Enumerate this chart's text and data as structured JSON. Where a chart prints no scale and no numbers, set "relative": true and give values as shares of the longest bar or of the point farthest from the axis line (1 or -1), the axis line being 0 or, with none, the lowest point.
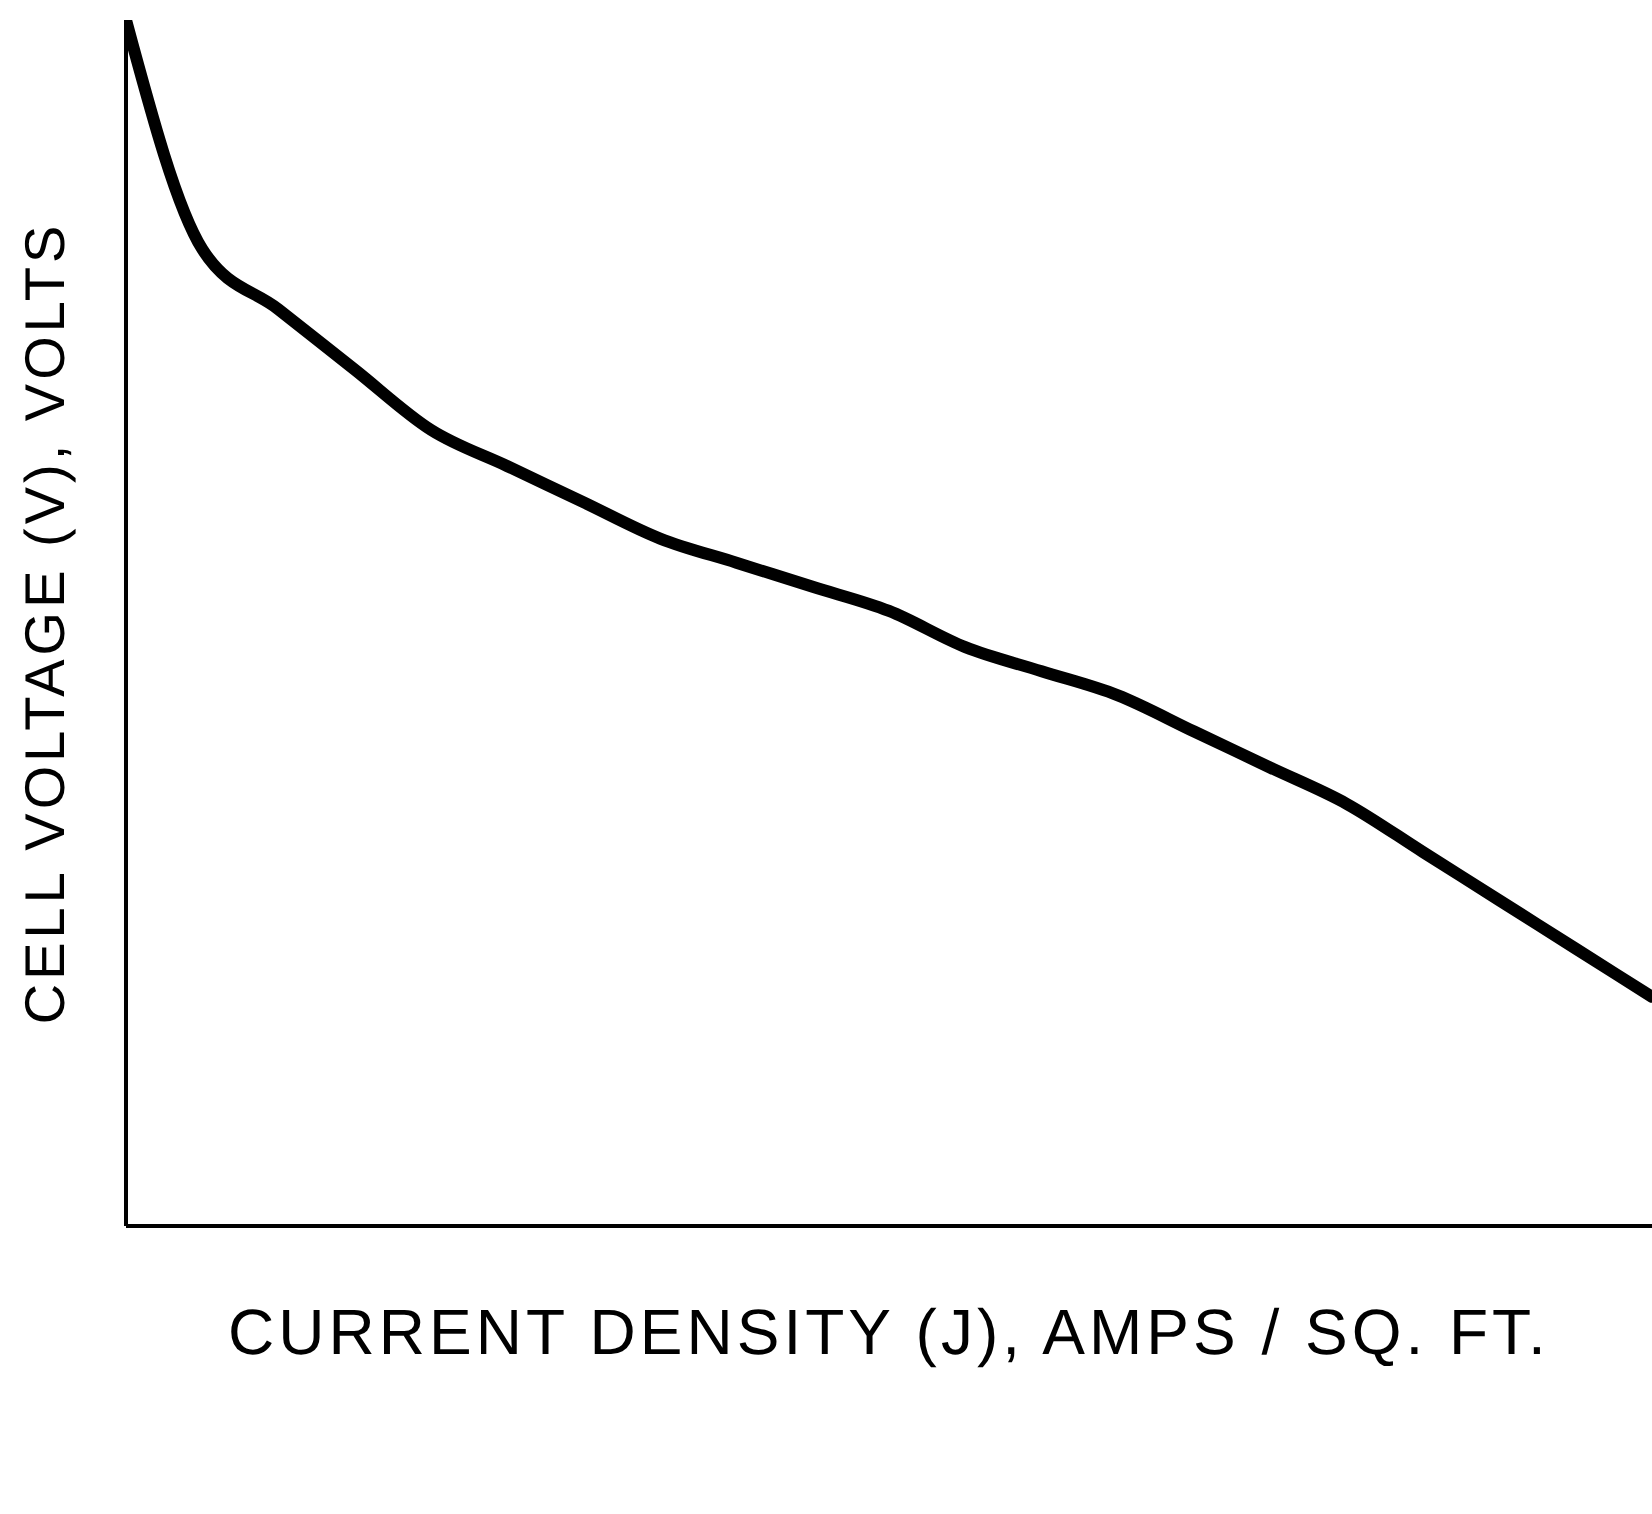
{
  "chart_data": {
    "type": "line",
    "relative": true,
    "xlabel": "CURRENT DENSITY (J), AMPS / SQ. FT.",
    "ylabel": "CELL VOLTAGE (V), VOLTS",
    "categories": [
      null,
      null,
      null,
      null,
      null,
      null,
      null,
      null,
      null,
      null,
      null,
      null,
      null,
      null,
      null,
      null,
      null,
      null,
      null,
      null,
      null
    ],
    "series": [
      {
        "color": "#000000",
        "values": [
          1,
          0.81,
          0.76,
          0.71,
          0.66,
          0.63,
          0.6,
          0.57,
          0.55,
          0.53,
          0.51,
          0.48,
          0.46,
          0.44,
          0.41,
          0.38,
          0.35,
          0.31,
          0.27,
          0.23,
          0.19
        ]
      }
    ],
    "marker": "none",
    "line_style": "solid",
    "grid": false,
    "legend": false
  }
}
